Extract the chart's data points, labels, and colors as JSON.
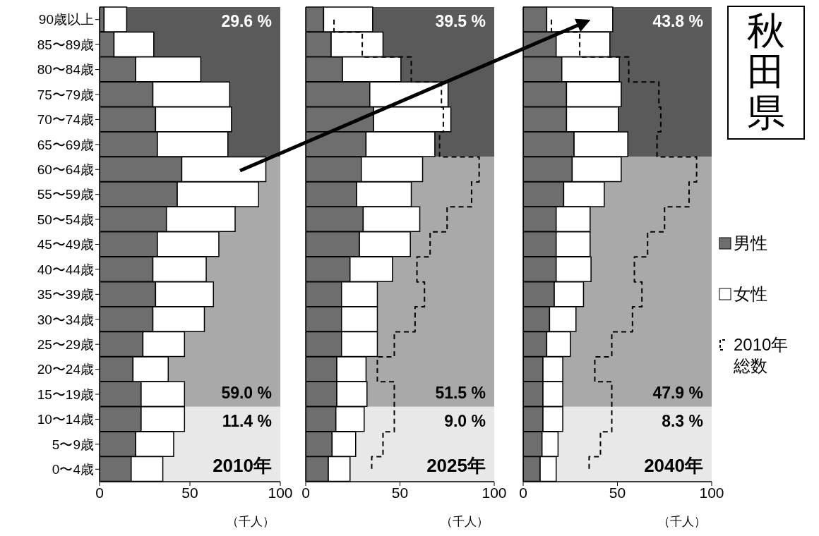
{
  "chart_data": [
    {
      "type": "bar",
      "orientation": "horizontal",
      "stacked": true,
      "xlabel": "（千人）",
      "categories": [
        "90歳以上",
        "85〜89歳",
        "80〜84歳",
        "75〜79歳",
        "70〜74歳",
        "65〜69歳",
        "60〜64歳",
        "55〜59歳",
        "50〜54歳",
        "45〜49歳",
        "40〜44歳",
        "35〜39歳",
        "30〜34歳",
        "25〜29歳",
        "20〜24歳",
        "15〜19歳",
        "10〜14歳",
        "5〜9歳",
        "0〜4歳"
      ],
      "series": [
        {
          "color": "#6e6e6e",
          "values": [
            2.5,
            8,
            20,
            29.5,
            31,
            32,
            45.5,
            43,
            37,
            32,
            29.5,
            31,
            29.5,
            24,
            18.5,
            23,
            23,
            20,
            17.5
          ]
        },
        {
          "color": "#ffffff",
          "values": [
            12.5,
            22,
            36,
            42.5,
            42,
            39,
            46.5,
            45,
            38,
            34,
            29.5,
            32,
            28.5,
            23,
            19.5,
            24,
            24,
            21,
            17.5
          ]
        }
      ],
      "xlim": [
        0,
        100
      ],
      "xticks": [
        0,
        50,
        100
      ],
      "bands": [
        {
          "axis": "y",
          "from": "90歳以上",
          "to": "65〜69歳",
          "label": "29.6 %",
          "color": "#5a5a5a"
        },
        {
          "axis": "y",
          "from": "60〜64歳",
          "to": "15〜19歳",
          "label": "59.0 %",
          "color": "#a9a9a9"
        },
        {
          "axis": "y",
          "from": "10〜14歳",
          "to": "0〜4歳",
          "label": "11.4 %",
          "color": "#e8e8e8"
        }
      ],
      "annotations": [
        "2010年"
      ]
    },
    {
      "type": "bar",
      "orientation": "horizontal",
      "stacked": true,
      "xlabel": "（千人）",
      "tick_labels": "x",
      "line_style": "dashed",
      "categories": [
        "90歳以上",
        "85〜89歳",
        "80〜84歳",
        "75〜79歳",
        "70〜74歳",
        "65〜69歳",
        "60〜64歳",
        "55〜59歳",
        "50〜54歳",
        "45〜49歳",
        "40〜44歳",
        "35〜39歳",
        "30〜34歳",
        "25〜29歳",
        "20〜24歳",
        "15〜19歳",
        "10〜14歳",
        "5〜9歳",
        "0〜4歳"
      ],
      "series": [
        {
          "color": "#6e6e6e",
          "values": [
            9.5,
            13.5,
            19.5,
            34,
            36,
            32,
            29.5,
            27,
            30.5,
            28.5,
            23.5,
            19,
            19,
            19,
            16.5,
            16.5,
            16,
            14,
            12
          ]
        },
        {
          "color": "#ffffff",
          "values": [
            26,
            27.5,
            31,
            41.5,
            41,
            36.5,
            32.5,
            29,
            30,
            27,
            22.5,
            19,
            19,
            19,
            15.5,
            16,
            15,
            12.5,
            11.5
          ]
        },
        {
          "type": "step",
          "color": "#000000",
          "values": [
            15,
            30,
            56,
            72,
            73,
            71,
            92,
            88,
            75,
            66,
            59,
            63,
            58,
            47,
            38,
            47,
            47,
            41,
            35
          ]
        }
      ],
      "xlim": [
        0,
        100
      ],
      "xticks": [
        0,
        50,
        100
      ],
      "bands": [
        {
          "axis": "y",
          "from": "90歳以上",
          "to": "65〜69歳",
          "label": "39.5 %",
          "color": "#5a5a5a"
        },
        {
          "axis": "y",
          "from": "60〜64歳",
          "to": "15〜19歳",
          "label": "51.5 %",
          "color": "#a9a9a9"
        },
        {
          "axis": "y",
          "from": "10〜14歳",
          "to": "0〜4歳",
          "label": "9.0 %",
          "color": "#e8e8e8"
        }
      ],
      "annotations": [
        "2025年"
      ]
    },
    {
      "type": "bar",
      "orientation": "horizontal",
      "stacked": true,
      "xlabel": "（千人）",
      "tick_labels": "x",
      "line_style": "dashed",
      "legend": "right",
      "categories": [
        "90歳以上",
        "85〜89歳",
        "80〜84歳",
        "75〜79歳",
        "70〜74歳",
        "65〜69歳",
        "60〜64歳",
        "55〜59歳",
        "50〜54歳",
        "45〜49歳",
        "40〜44歳",
        "35〜39歳",
        "30〜34歳",
        "25〜29歳",
        "20〜24歳",
        "15〜19歳",
        "10〜14歳",
        "5〜9歳",
        "0〜4歳"
      ],
      "series": [
        {
          "name": "男性",
          "color": "#6e6e6e",
          "values": [
            12.5,
            17.5,
            20.5,
            23,
            23,
            27,
            26,
            21.5,
            17.5,
            17.5,
            17.5,
            16.5,
            14,
            12.5,
            10.5,
            10.5,
            10.5,
            10,
            9
          ]
        },
        {
          "name": "女性",
          "color": "#ffffff",
          "values": [
            35,
            28.5,
            30.5,
            29,
            27.5,
            28.5,
            26,
            21.5,
            18,
            18,
            18.5,
            15.5,
            14,
            12.5,
            10.5,
            10.5,
            10.5,
            8.5,
            8.5
          ]
        },
        {
          "name": "2010年総数",
          "type": "step",
          "color": "#000000",
          "values": [
            15,
            30,
            56,
            72,
            73,
            71,
            92,
            88,
            75,
            66,
            59,
            63,
            58,
            47,
            38,
            47,
            47,
            41,
            35
          ]
        }
      ],
      "xlim": [
        0,
        100
      ],
      "xticks": [
        0,
        50,
        100
      ],
      "bands": [
        {
          "axis": "y",
          "from": "90歳以上",
          "to": "65〜69歳",
          "label": "43.8 %",
          "color": "#5a5a5a"
        },
        {
          "axis": "y",
          "from": "60〜64歳",
          "to": "15〜19歳",
          "label": "47.9 %",
          "color": "#a9a9a9"
        },
        {
          "axis": "y",
          "from": "10〜14歳",
          "to": "0〜4歳",
          "label": "8.3 %",
          "color": "#e8e8e8"
        }
      ],
      "annotations": [
        "2040年"
      ]
    },
    {
      "type": "other",
      "title": "秋田県"
    }
  ]
}
